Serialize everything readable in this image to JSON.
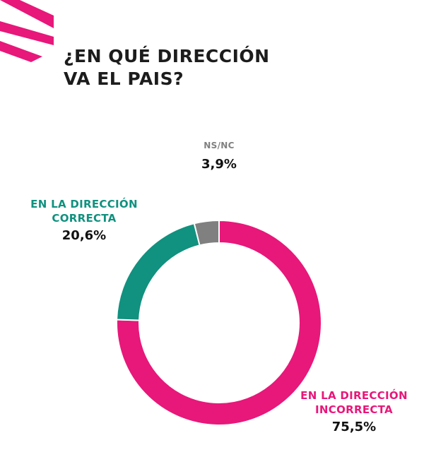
{
  "title": {
    "line1": "¿EN QUÉ DIRECCIÓN",
    "line2": "VA EL PAIS?"
  },
  "colors": {
    "incorrecta": "#e8177a",
    "correcta": "#11917f",
    "nsnc": "#808080",
    "logo": "#e8177a",
    "title": "#1c1c1c"
  },
  "chart_data": {
    "type": "pie",
    "style": "donut",
    "title": "¿EN QUÉ DIRECCIÓN VA EL PAIS?",
    "categories": [
      "EN LA DIRECCIÓN INCORRECTA",
      "EN LA DIRECCIÓN CORRECTA",
      "NS/NC"
    ],
    "values": [
      75.5,
      20.6,
      3.9
    ],
    "labels": [
      "75,5%",
      "20,6%",
      "3,9%"
    ],
    "order": "clockwise from top: incorrecta, correcta, ns/nc"
  },
  "labels": {
    "nsnc": {
      "name": "NS/NC",
      "pct": "3,9%"
    },
    "correcta": {
      "name_line1": "EN LA DIRECCIÓN",
      "name_line2": "CORRECTA",
      "pct": "20,6%"
    },
    "incorrecta": {
      "name_line1": "EN LA DIRECCIÓN",
      "name_line2": "INCORRECTA",
      "pct": "75,5%"
    }
  }
}
